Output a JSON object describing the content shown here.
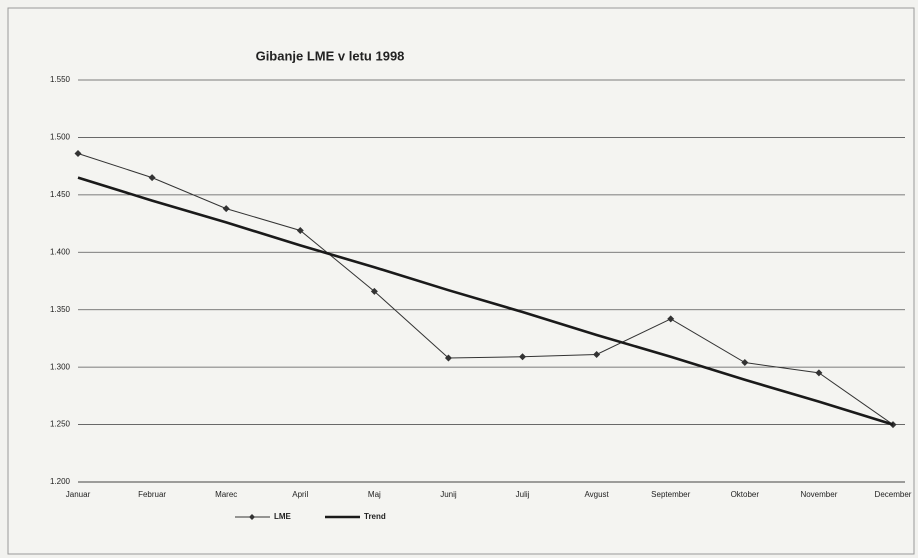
{
  "chart_data": {
    "type": "line",
    "title": "Gibanje LME v letu 1998",
    "categories": [
      "Januar",
      "Februar",
      "Marec",
      "April",
      "Maj",
      "Junij",
      "Julij",
      "Avgust",
      "September",
      "Oktober",
      "November",
      "December"
    ],
    "series": [
      {
        "name": "LME",
        "color": "#333333",
        "marker": "diamond",
        "values": [
          1486,
          1465,
          1438,
          1419,
          1366,
          1308,
          1309,
          1311,
          1342,
          1304,
          1295,
          1250
        ]
      },
      {
        "name": "Trend",
        "color": "#1a1a1a",
        "values": [
          1465,
          1445,
          1426,
          1406,
          1387,
          1367,
          1348,
          1328,
          1309,
          1289,
          1270,
          1250
        ]
      }
    ],
    "ylim": [
      1200,
      1550
    ],
    "yticks": [
      {
        "value": 1200,
        "label": "1.200"
      },
      {
        "value": 1250,
        "label": "1.250"
      },
      {
        "value": 1300,
        "label": "1.300"
      },
      {
        "value": 1350,
        "label": "1.350"
      },
      {
        "value": 1400,
        "label": "1.400"
      },
      {
        "value": 1450,
        "label": "1.450"
      },
      {
        "value": 1500,
        "label": "1.500"
      },
      {
        "value": 1550,
        "label": "1.550"
      }
    ],
    "grid": true,
    "legend": "bottom"
  }
}
